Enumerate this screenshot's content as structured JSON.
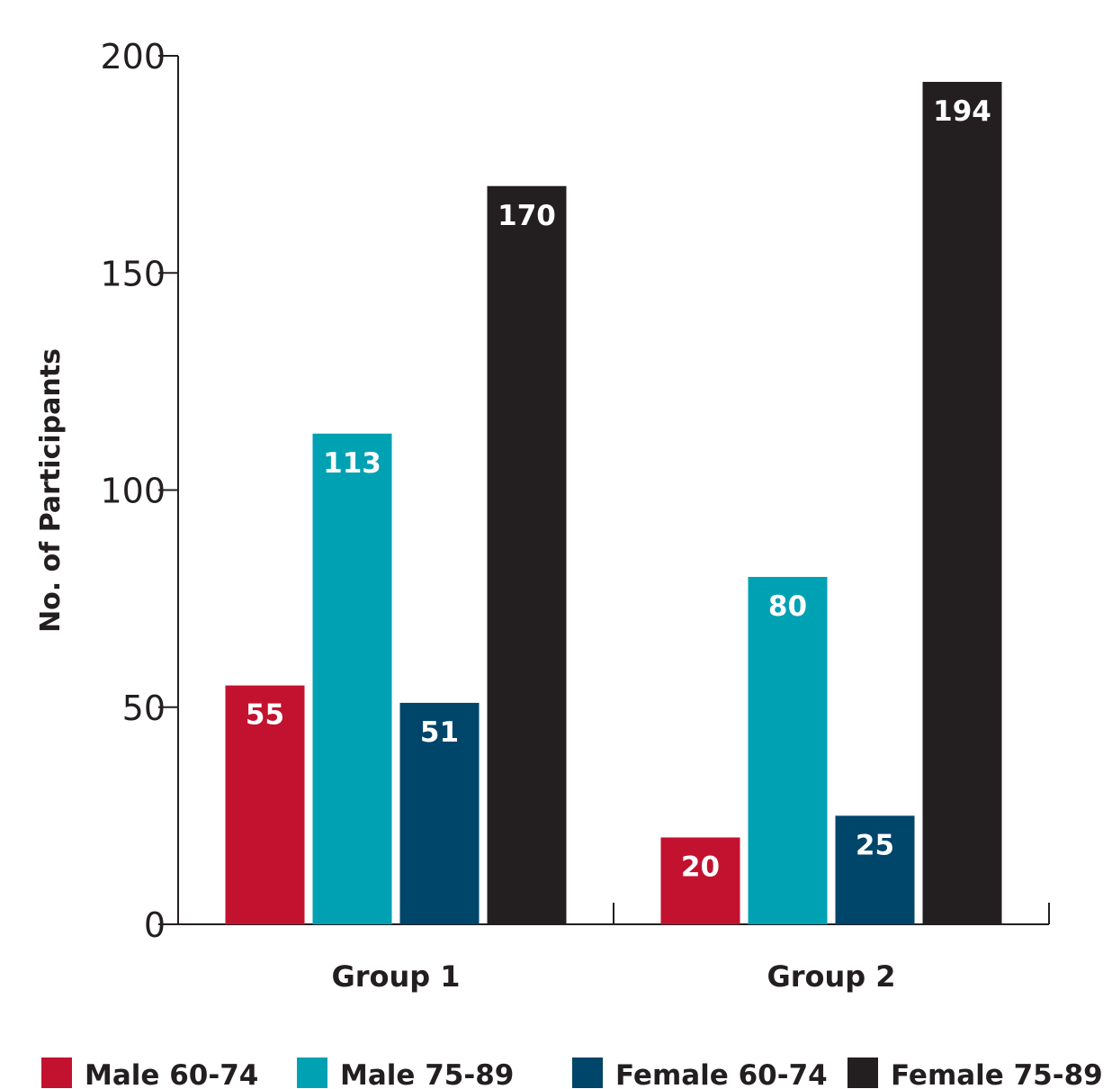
{
  "chart_data": {
    "type": "bar",
    "title": "",
    "xlabel": "",
    "ylabel": "No. of Participants",
    "ylim": [
      0,
      200
    ],
    "yticks": [
      0,
      50,
      100,
      150,
      200
    ],
    "grid": false,
    "legend_position": "bottom",
    "categories": [
      "Group 1",
      "Group 2"
    ],
    "series": [
      {
        "name": "Male 60-74",
        "color": "#c3122f",
        "values": [
          55,
          20
        ]
      },
      {
        "name": "Male 75-89",
        "color": "#00a1b3",
        "values": [
          113,
          80
        ]
      },
      {
        "name": "Female 60-74",
        "color": "#00456a",
        "values": [
          51,
          25
        ]
      },
      {
        "name": "Female 75-89",
        "color": "#231f20",
        "values": [
          170,
          194
        ]
      }
    ]
  }
}
